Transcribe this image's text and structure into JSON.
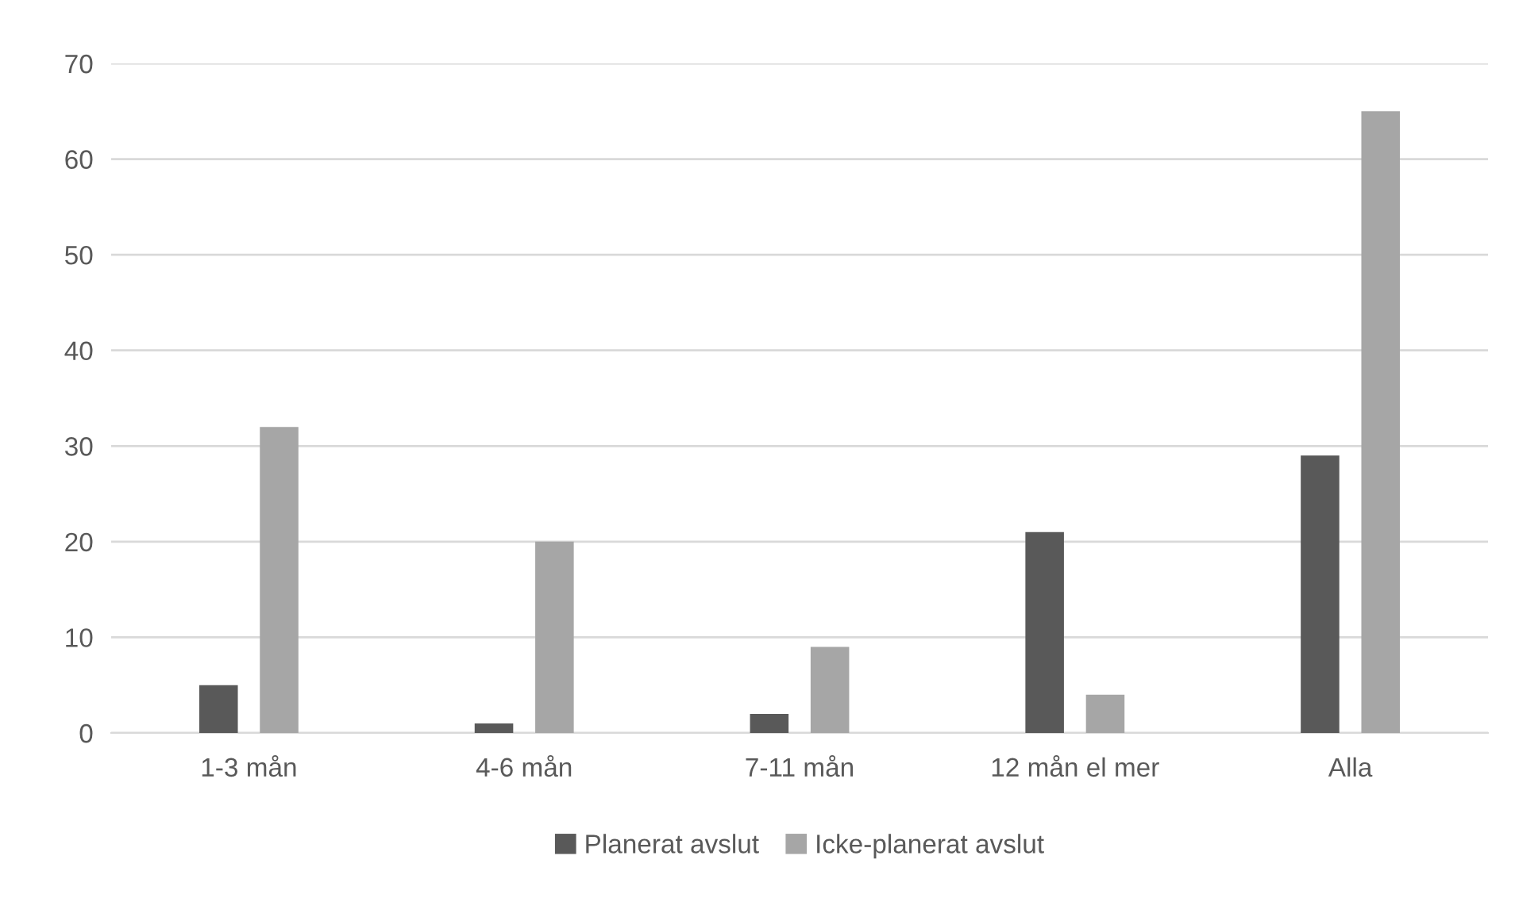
{
  "chart_data": {
    "type": "bar",
    "categories": [
      "1-3 mån",
      "4-6 mån",
      "7-11 mån",
      "12 mån el mer",
      "Alla"
    ],
    "series": [
      {
        "name": "Planerat avslut",
        "color": "#595959",
        "values": [
          5,
          1,
          2,
          21,
          29
        ]
      },
      {
        "name": "Icke-planerat avslut",
        "color": "#a6a6a6",
        "values": [
          32,
          20,
          9,
          4,
          65
        ]
      }
    ],
    "ylim": [
      0,
      70
    ],
    "yticks": [
      0,
      10,
      20,
      30,
      40,
      50,
      60,
      70
    ],
    "grid": "y",
    "legend": "bottom"
  }
}
